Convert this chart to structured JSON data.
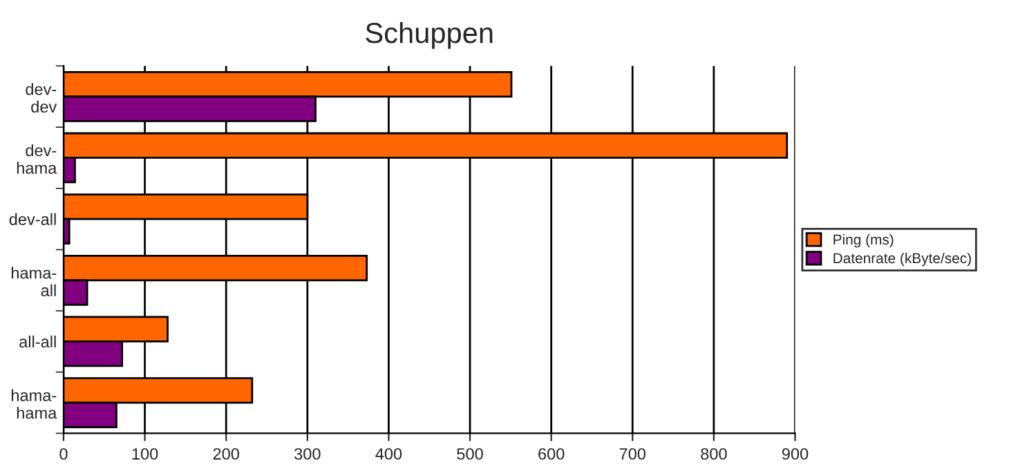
{
  "chart_data": {
    "type": "bar",
    "orientation": "horizontal",
    "title": "Schuppen",
    "categories": [
      "dev-\ndev",
      "dev-\nhama",
      "dev-all",
      "hama-\nall",
      "all-all",
      "hama-\nhama"
    ],
    "series": [
      {
        "name": "Ping (ms)",
        "color": "#ff6600",
        "values": [
          551,
          890,
          300,
          373,
          128,
          232
        ]
      },
      {
        "name": "Datenrate (kByte/sec)",
        "color": "#800080",
        "values": [
          310,
          14,
          7,
          29,
          72,
          65
        ]
      }
    ],
    "xlim": [
      0,
      900
    ],
    "xticks": [
      0,
      100,
      200,
      300,
      400,
      500,
      600,
      700,
      800,
      900
    ],
    "grid": "x",
    "legend": "right"
  }
}
